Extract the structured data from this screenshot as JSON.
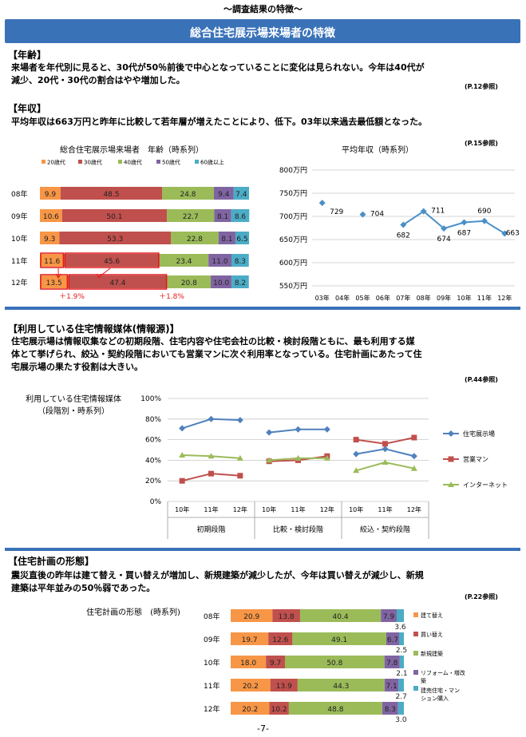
{
  "header": {
    "top_title": "～調査結果の特徴～",
    "banner_title": "総合住宅展示場来場者の特徴"
  },
  "section_age": {
    "heading": "【年齢】",
    "lines": [
      "来場者を年代別に見ると、30代が50％前後で中心となっていることに変化は見られない。今年は40代が",
      "減少、20代・30代の割合はやや増加した。"
    ],
    "ref": "(P.12参照)"
  },
  "section_income": {
    "heading": "【年収】",
    "lines": [
      "平均年収は663万円と昨年に比較して若年層が増えたことにより、低下。03年以来過去最低額となった。"
    ],
    "ref": "(P.15参照)"
  },
  "section_media": {
    "heading": "【利用している住宅情報媒体(情報源)】",
    "lines": [
      "住宅展示場は情報収集などの初期段階、住宅内容や住宅会社の比較・検討段階ともに、最も利用する媒",
      "体とて挙げられ、絞込・契約段階においても営業マンに次ぐ利用率となっている。住宅計画にあたって住",
      "宅展示場の果たす役割は大きい。"
    ],
    "ref": "(P.44参照)"
  },
  "section_plan": {
    "heading": "【住宅計画の形態】",
    "lines": [
      "震災直後の昨年は建て替え・買い替えが増加し、新規建築が減少したが、今年は買い替えが減少し、新規",
      "建築は平年並みの50％弱であった。"
    ],
    "ref": "(P.22参照)"
  },
  "colors": {
    "banner": "#3a72b8",
    "c20": "#f79646",
    "c30": "#c0504d",
    "c40": "#9bbb59",
    "c50": "#8064a2",
    "c60": "#4bacc6",
    "line_blue": "#4a90c8",
    "red": "#e0191c"
  },
  "footer": {
    "page": "-7-"
  },
  "chart_data": [
    {
      "type": "bar",
      "stacked": "100%",
      "orientation": "horizontal",
      "title": "総合住宅展示場来場者　年齢（時系列）",
      "categories": [
        "08年",
        "09年",
        "10年",
        "11年",
        "12年"
      ],
      "series": [
        {
          "name": "20歳代",
          "color": "#f79646",
          "values": [
            9.9,
            10.6,
            9.3,
            11.6,
            13.5
          ]
        },
        {
          "name": "30歳代",
          "color": "#c0504d",
          "values": [
            48.5,
            50.1,
            53.3,
            45.6,
            47.4
          ]
        },
        {
          "name": "40歳代",
          "color": "#9bbb59",
          "values": [
            24.8,
            22.7,
            22.8,
            23.4,
            20.8
          ]
        },
        {
          "name": "50歳代",
          "color": "#8064a2",
          "values": [
            9.4,
            8.1,
            8.1,
            11.0,
            10.0
          ]
        },
        {
          "name": "60歳以上",
          "color": "#4bacc6",
          "values": [
            7.4,
            8.6,
            6.5,
            8.3,
            8.2
          ]
        }
      ],
      "annotations": [
        "＋1.9%",
        "＋1.8%"
      ],
      "legend": "top"
    },
    {
      "type": "line",
      "title": "平均年収（時系列）",
      "categories": [
        "03年",
        "04年",
        "05年",
        "06年",
        "07年",
        "08年",
        "09年",
        "10年",
        "11年",
        "12年"
      ],
      "x_slot_labels": [
        "03年",
        "04年",
        "05年",
        "06年",
        "07年",
        "08年",
        "09年",
        "10年",
        "11年",
        "12年"
      ],
      "points": [
        {
          "x": "03年",
          "y": 729
        },
        {
          "x": "05年",
          "y": 704
        },
        {
          "x": "07年",
          "y": 682
        },
        {
          "x": "08年",
          "y": 711
        },
        {
          "x": "09年",
          "y": 674
        },
        {
          "x": "10年",
          "y": 687
        },
        {
          "x": "11年",
          "y": 690
        },
        {
          "x": "12年",
          "y": 663
        }
      ],
      "ytick_labels": [
        "550万円",
        "600万円",
        "650万円",
        "700万円",
        "750万円",
        "800万円"
      ],
      "ylim": [
        550,
        800
      ],
      "grid": true
    },
    {
      "type": "line",
      "title": "利用している住宅情報媒体",
      "subtitle": "（段階別・時系列）",
      "groups": [
        {
          "name": "初期段階",
          "categories": [
            "10年",
            "11年",
            "12年"
          ]
        },
        {
          "name": "比較・検討段階",
          "categories": [
            "10年",
            "11年",
            "12年"
          ]
        },
        {
          "name": "絞込・契約段階",
          "categories": [
            "10年",
            "11年",
            "12年"
          ]
        }
      ],
      "series": [
        {
          "name": "住宅展示場",
          "color": "#4f81bd",
          "values": [
            [
              71,
              80,
              79
            ],
            [
              67,
              70,
              70
            ],
            [
              46,
              51,
              44
            ]
          ]
        },
        {
          "name": "営業マン",
          "color": "#c0504d",
          "values": [
            [
              20,
              27,
              25
            ],
            [
              39,
              40,
              44
            ],
            [
              60,
              56,
              62
            ]
          ]
        },
        {
          "name": "インターネット",
          "color": "#9bbb59",
          "values": [
            [
              45,
              44,
              42
            ],
            [
              40,
              42,
              42
            ],
            [
              30,
              38,
              32
            ]
          ]
        }
      ],
      "yticks": [
        "0%",
        "20%",
        "40%",
        "60%",
        "80%",
        "100%"
      ],
      "ylim": [
        0,
        100
      ],
      "grid": true,
      "legend": "right"
    },
    {
      "type": "bar",
      "stacked": "100%",
      "orientation": "horizontal",
      "title": "住宅計画の形態　(時系列)",
      "categories": [
        "08年",
        "09年",
        "10年",
        "11年",
        "12年"
      ],
      "series": [
        {
          "name": "建て替え",
          "color": "#f79646",
          "values": [
            20.9,
            19.7,
            18.0,
            20.2,
            20.2
          ]
        },
        {
          "name": "買い替え",
          "color": "#c0504d",
          "values": [
            13.8,
            12.6,
            9.7,
            13.9,
            10.2
          ]
        },
        {
          "name": "新規建築",
          "color": "#9bbb59",
          "values": [
            40.4,
            49.1,
            50.8,
            44.3,
            48.8
          ]
        },
        {
          "name": "リフォーム・増改築",
          "color": "#8064a2",
          "values": [
            7.9,
            6.7,
            7.8,
            7.1,
            8.3
          ]
        },
        {
          "name": "建売住宅・マンション購入",
          "color": "#4bacc6",
          "values": [
            3.6,
            2.5,
            2.1,
            2.7,
            3.0
          ]
        }
      ],
      "legend": "right"
    }
  ]
}
